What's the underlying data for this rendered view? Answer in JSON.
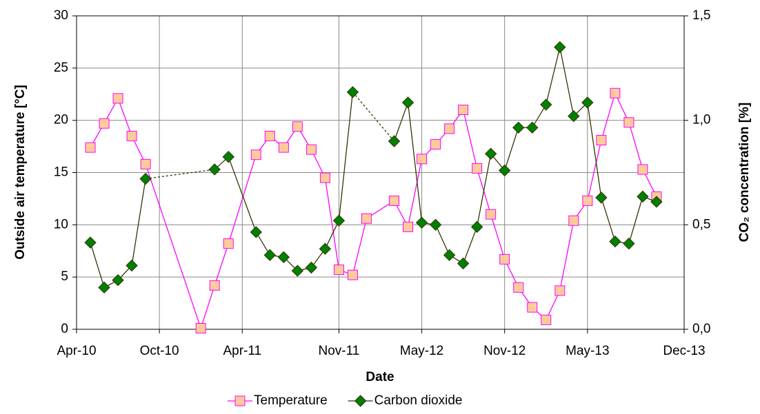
{
  "chart_data": {
    "type": "line",
    "x_label": "Date",
    "y_label": "Outside air temperature [°C]",
    "y2_label": "CO₂ concentration [%]",
    "xlim": [
      "2010-04",
      "2013-12"
    ],
    "xticks": [
      {
        "value": "2010-04",
        "label": "Apr-10"
      },
      {
        "value": "2010-10",
        "label": "Oct-10"
      },
      {
        "value": "2011-04",
        "label": "Apr-11"
      },
      {
        "value": "2011-11",
        "label": "Nov-11"
      },
      {
        "value": "2012-05",
        "label": "May-12"
      },
      {
        "value": "2012-11",
        "label": "Nov-12"
      },
      {
        "value": "2013-05",
        "label": "May-13"
      },
      {
        "value": "2013-12",
        "label": "Dec-13"
      }
    ],
    "ylim": [
      0,
      30
    ],
    "yticks": [
      0,
      5,
      10,
      15,
      20,
      25,
      30
    ],
    "y2lim": [
      0,
      1.5
    ],
    "y2ticks": [
      {
        "value": 0,
        "label": "0,0"
      },
      {
        "value": 0.5,
        "label": "0,5"
      },
      {
        "value": 1.0,
        "label": "1,0"
      },
      {
        "value": 1.5,
        "label": "1,5"
      }
    ],
    "grid": true,
    "legend": "bottom",
    "series": [
      {
        "name": "Temperature",
        "color": "#ff00ff",
        "marker": "square",
        "marker_fill": "#ffcc99",
        "axis": "y",
        "x": [
          "2010-05",
          "2010-06",
          "2010-07",
          "2010-08",
          "2010-09",
          "2011-01",
          "2011-02",
          "2011-03",
          "2011-05",
          "2011-06",
          "2011-07",
          "2011-08",
          "2011-09",
          "2011-10",
          "2011-11",
          "2011-12",
          "2012-01",
          "2012-03",
          "2012-04",
          "2012-05",
          "2012-06",
          "2012-07",
          "2012-08",
          "2012-09",
          "2012-10",
          "2012-11",
          "2012-12",
          "2013-01",
          "2013-02",
          "2013-03",
          "2013-04",
          "2013-05",
          "2013-06",
          "2013-07",
          "2013-08",
          "2013-09",
          "2013-10"
        ],
        "values": [
          17.4,
          19.7,
          22.1,
          18.5,
          15.8,
          0.1,
          4.2,
          8.2,
          16.7,
          18.5,
          17.4,
          19.4,
          17.2,
          14.5,
          5.7,
          5.2,
          10.6,
          12.3,
          9.8,
          16.3,
          17.7,
          19.2,
          21.0,
          15.4,
          11.0,
          6.7,
          4.0,
          2.1,
          0.9,
          3.7,
          10.4,
          12.3,
          18.1,
          22.6,
          19.8,
          15.3,
          12.7
        ]
      },
      {
        "name": "Carbon dioxide",
        "color": "#333300",
        "marker": "diamond",
        "marker_fill": "#008000",
        "axis": "y2",
        "gap_line": "dashed",
        "x": [
          "2010-05",
          "2010-06",
          "2010-07",
          "2010-08",
          "2010-09",
          "2011-02",
          "2011-03",
          "2011-05",
          "2011-06",
          "2011-07",
          "2011-08",
          "2011-09",
          "2011-10",
          "2011-11",
          "2011-12",
          "2012-03",
          "2012-04",
          "2012-05",
          "2012-06",
          "2012-07",
          "2012-08",
          "2012-09",
          "2012-10",
          "2012-11",
          "2012-12",
          "2013-01",
          "2013-02",
          "2013-03",
          "2013-04",
          "2013-05",
          "2013-06",
          "2013-07",
          "2013-08",
          "2013-09",
          "2013-10"
        ],
        "values": [
          0.415,
          0.2,
          0.235,
          0.305,
          0.72,
          0.765,
          0.825,
          0.465,
          0.355,
          0.345,
          0.28,
          0.295,
          0.385,
          0.52,
          1.135,
          0.9,
          1.085,
          0.51,
          0.5,
          0.355,
          0.315,
          0.49,
          0.84,
          0.76,
          0.965,
          0.965,
          1.075,
          1.35,
          1.02,
          1.085,
          0.63,
          0.42,
          0.41,
          0.635,
          0.61
        ]
      }
    ]
  }
}
